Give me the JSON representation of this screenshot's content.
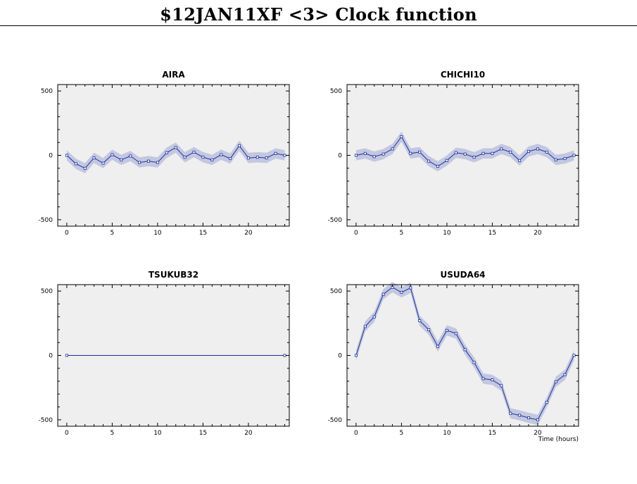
{
  "title": "$12JAN11XF <3>  Clock function",
  "chart_data": [
    {
      "type": "line",
      "title": "AIRA",
      "xlabel": "",
      "ylabel": "",
      "xlim": [
        -1,
        24.5
      ],
      "ylim": [
        -550,
        550
      ],
      "xticks": [
        0,
        5,
        10,
        15,
        20
      ],
      "yticks": [
        -500,
        0,
        500
      ],
      "x": [
        0,
        1,
        2,
        3,
        4,
        5,
        6,
        7,
        8,
        9,
        10,
        11,
        12,
        13,
        14,
        15,
        16,
        17,
        18,
        19,
        20,
        21,
        22,
        23,
        24
      ],
      "series": [
        {
          "values": [
            0,
            -65,
            -100,
            -20,
            -60,
            5,
            -35,
            -5,
            -55,
            -45,
            -55,
            20,
            60,
            -15,
            25,
            -15,
            -35,
            5,
            -25,
            75,
            -20,
            -15,
            -20,
            15,
            0
          ],
          "band": 40
        }
      ],
      "grid": false,
      "line_color": "#1c2fa0",
      "band_color": "#c3c8e0"
    },
    {
      "type": "line",
      "title": "CHICHI10",
      "xlabel": "",
      "ylabel": "",
      "xlim": [
        -1,
        24.5
      ],
      "ylim": [
        -550,
        550
      ],
      "xticks": [
        0,
        5,
        10,
        15,
        20
      ],
      "yticks": [
        -500,
        0,
        500
      ],
      "x": [
        0,
        1,
        2,
        3,
        4,
        5,
        6,
        7,
        8,
        9,
        10,
        11,
        12,
        13,
        14,
        15,
        16,
        17,
        18,
        19,
        20,
        21,
        22,
        23,
        24
      ],
      "series": [
        {
          "values": [
            0,
            15,
            -10,
            10,
            50,
            145,
            15,
            25,
            -45,
            -85,
            -40,
            20,
            10,
            -15,
            15,
            15,
            50,
            25,
            -40,
            30,
            50,
            25,
            -35,
            -25,
            0
          ],
          "band": 40
        }
      ],
      "grid": false,
      "line_color": "#1c2fa0",
      "band_color": "#c3c8e0"
    },
    {
      "type": "line",
      "title": "TSUKUB32",
      "xlabel": "",
      "ylabel": "",
      "xlim": [
        -1,
        24.5
      ],
      "ylim": [
        -550,
        550
      ],
      "xticks": [
        0,
        5,
        10,
        15,
        20
      ],
      "yticks": [
        -500,
        0,
        500
      ],
      "x": [
        0,
        24
      ],
      "series": [
        {
          "values": [
            0,
            0
          ],
          "band": 0
        }
      ],
      "grid": false,
      "line_color": "#1c2fa0",
      "band_color": "#c3c8e0"
    },
    {
      "type": "line",
      "title": "USUDA64",
      "xlabel": "Time (hours)",
      "ylabel": "",
      "xlim": [
        -1,
        24.5
      ],
      "ylim": [
        -550,
        550
      ],
      "xticks": [
        0,
        5,
        10,
        15,
        20
      ],
      "yticks": [
        -500,
        0,
        500
      ],
      "x": [
        0,
        1,
        2,
        3,
        4,
        5,
        6,
        7,
        8,
        9,
        10,
        11,
        12,
        13,
        14,
        15,
        16,
        17,
        18,
        19,
        20,
        21,
        22,
        23,
        24
      ],
      "series": [
        {
          "values": [
            0,
            225,
            300,
            475,
            530,
            490,
            525,
            270,
            200,
            70,
            195,
            170,
            45,
            -55,
            -180,
            -190,
            -235,
            -450,
            -465,
            -485,
            -500,
            -365,
            -205,
            -150,
            0
          ],
          "band": 40
        }
      ],
      "grid": false,
      "line_color": "#1c2fa0",
      "band_color": "#c3c8e0"
    }
  ]
}
